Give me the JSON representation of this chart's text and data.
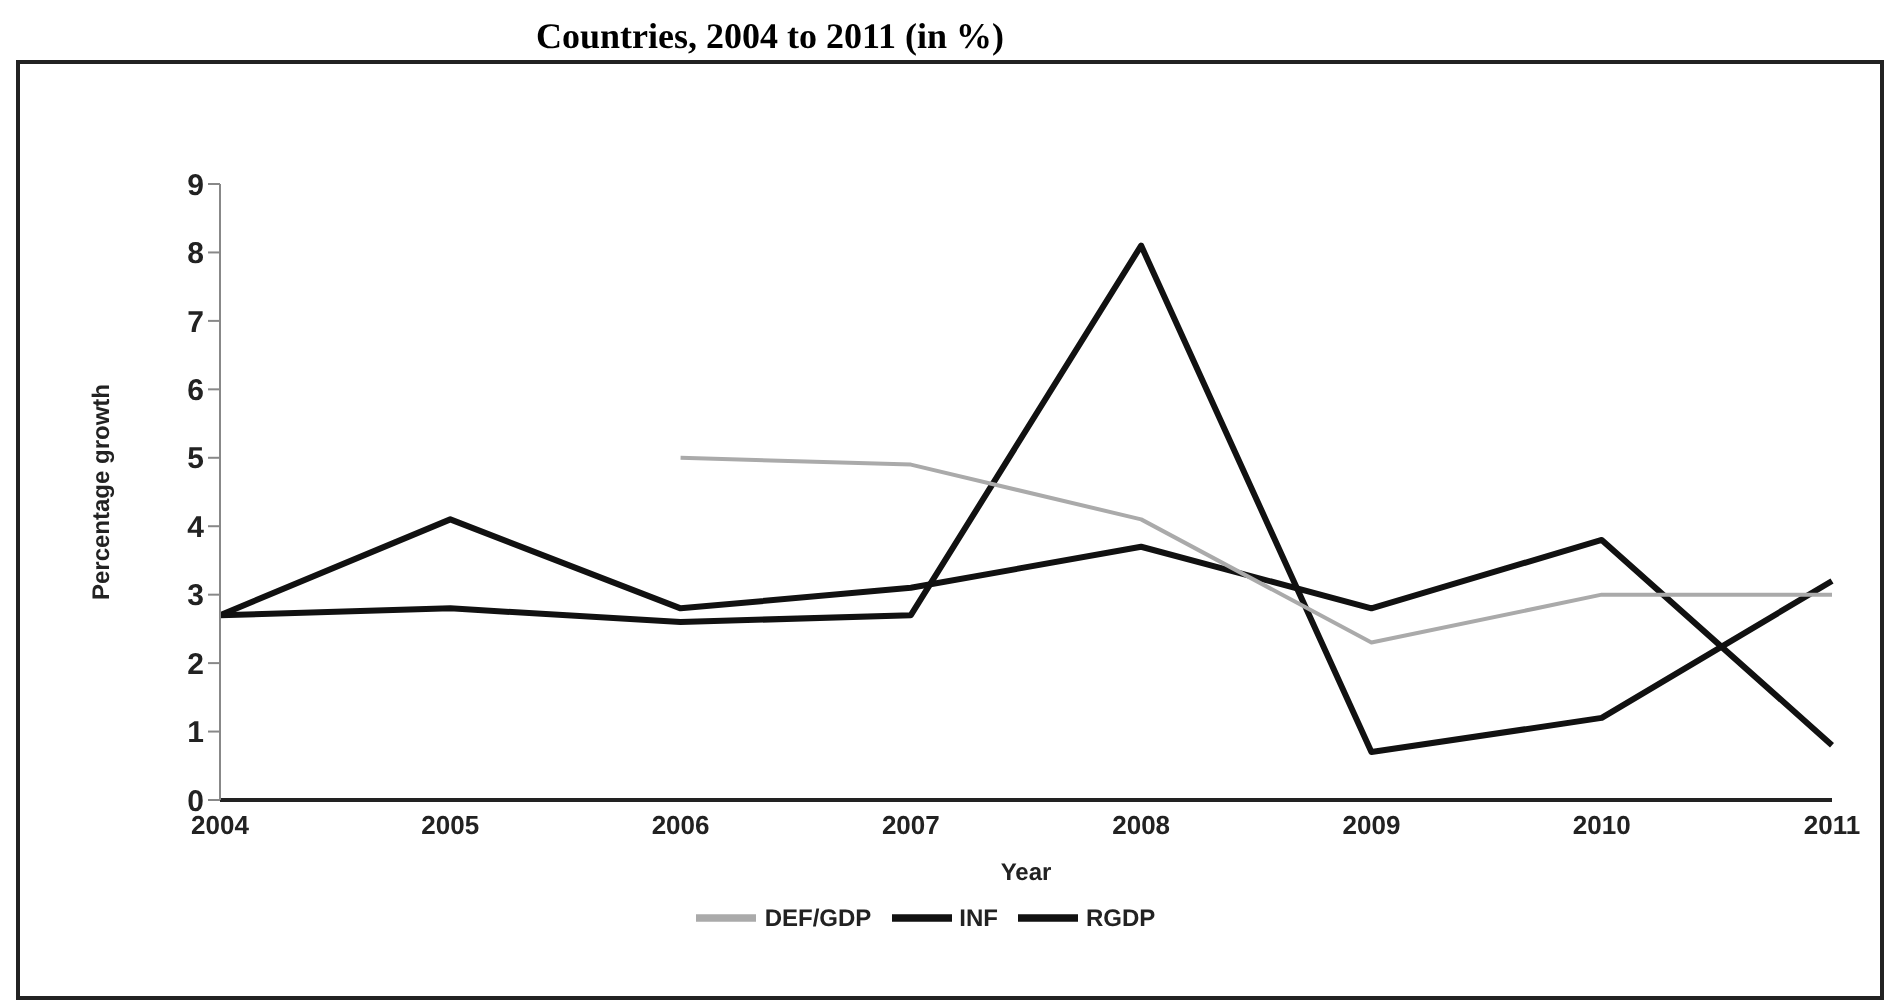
{
  "chart_data": {
    "type": "line",
    "title": "Countries, 2004 to 2011 (in %)",
    "xlabel": "Year",
    "ylabel": "Percentage growth",
    "categories": [
      "2004",
      "2005",
      "2006",
      "2007",
      "2008",
      "2009",
      "2010",
      "2011"
    ],
    "series": [
      {
        "name": "RGDP",
        "color": "#111111",
        "values": [
          2.7,
          4.1,
          2.8,
          3.1,
          3.7,
          2.8,
          3.8,
          0.8
        ]
      },
      {
        "name": "INF",
        "color": "#111111",
        "values": [
          2.7,
          2.8,
          2.6,
          2.7,
          8.1,
          0.7,
          1.2,
          3.2
        ]
      },
      {
        "name": "DEF/GDP",
        "color": "#aaaaaa",
        "values": [
          null,
          null,
          5.0,
          4.9,
          4.1,
          2.3,
          3.0,
          3.0
        ]
      }
    ],
    "ylim": [
      0,
      9
    ],
    "yticks": [
      0,
      1,
      2,
      3,
      4,
      5,
      6,
      7,
      8,
      9
    ],
    "grid": false,
    "legend": "bottom",
    "marker": "none",
    "line_style": "solid"
  }
}
